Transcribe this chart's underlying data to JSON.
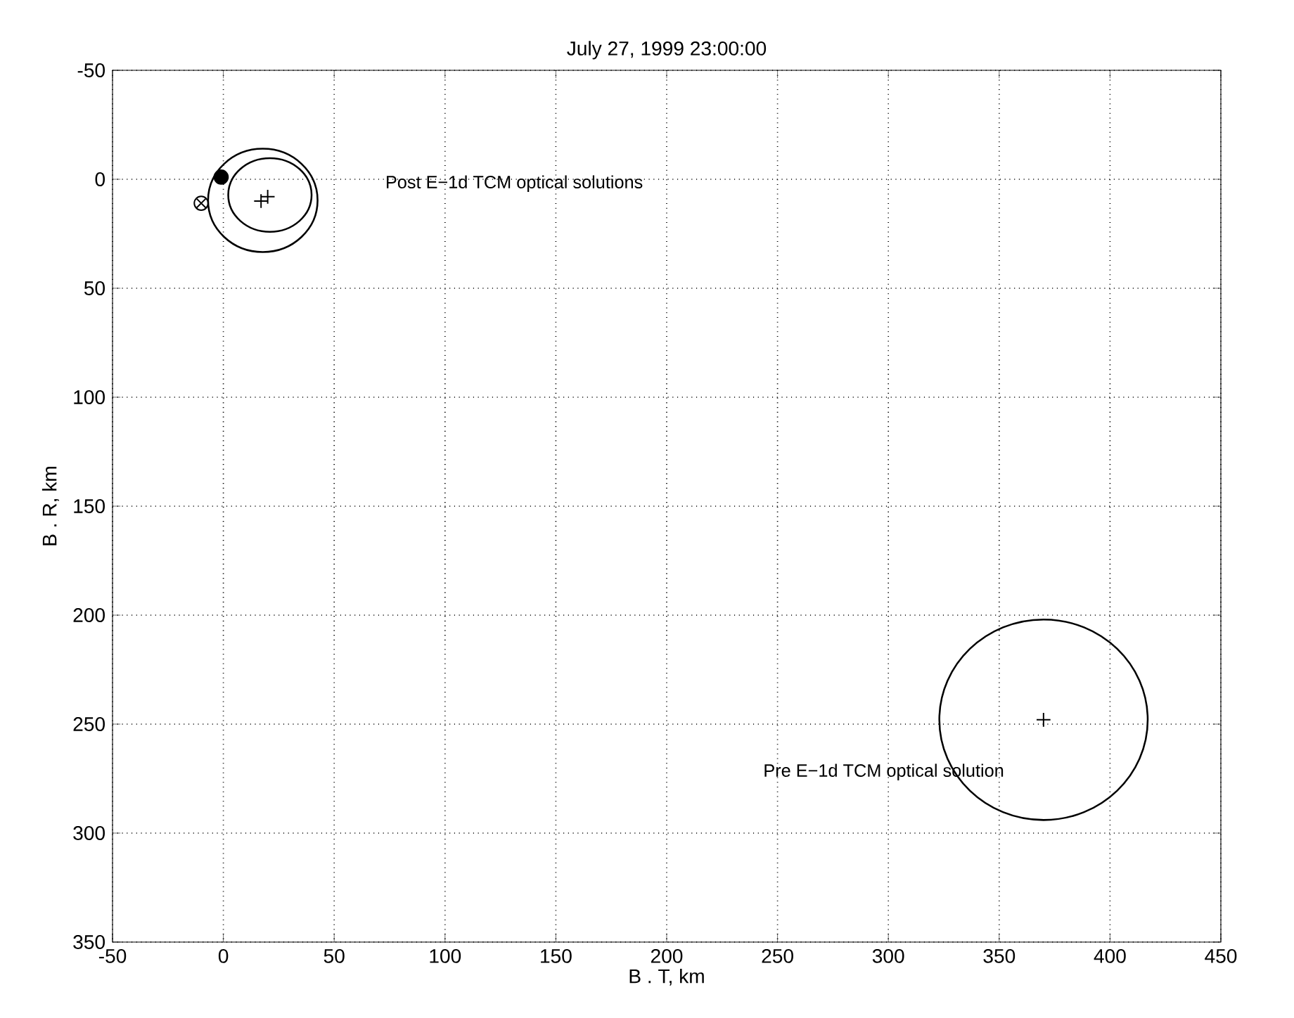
{
  "chart_data": {
    "type": "scatter",
    "title": "July 27, 1999 23:00:00",
    "xlabel": "B . T, km",
    "ylabel": "B . R, km",
    "xlim": [
      -50,
      450
    ],
    "ylim": [
      350,
      -50
    ],
    "xticks": [
      -50,
      0,
      50,
      100,
      150,
      200,
      250,
      300,
      350,
      400,
      450
    ],
    "yticks": [
      -50,
      0,
      50,
      100,
      150,
      200,
      250,
      300,
      350
    ],
    "grid": true,
    "series": [
      {
        "marker": "cross",
        "color": "#000000",
        "x": [
          17,
          20
        ],
        "values": [
          10,
          8
        ]
      },
      {
        "marker": "cross",
        "color": "#000000",
        "x": [
          370
        ],
        "values": [
          248
        ]
      },
      {
        "marker": "circle",
        "color": "#000000",
        "x": [
          -1
        ],
        "values": [
          -1
        ]
      },
      {
        "color": "#000000",
        "x": [
          -10
        ],
        "values": [
          11
        ]
      }
    ],
    "annotations": [
      "Post E−1d TCM optical solutions",
      "Pre E−1d TCM optical solution"
    ]
  }
}
